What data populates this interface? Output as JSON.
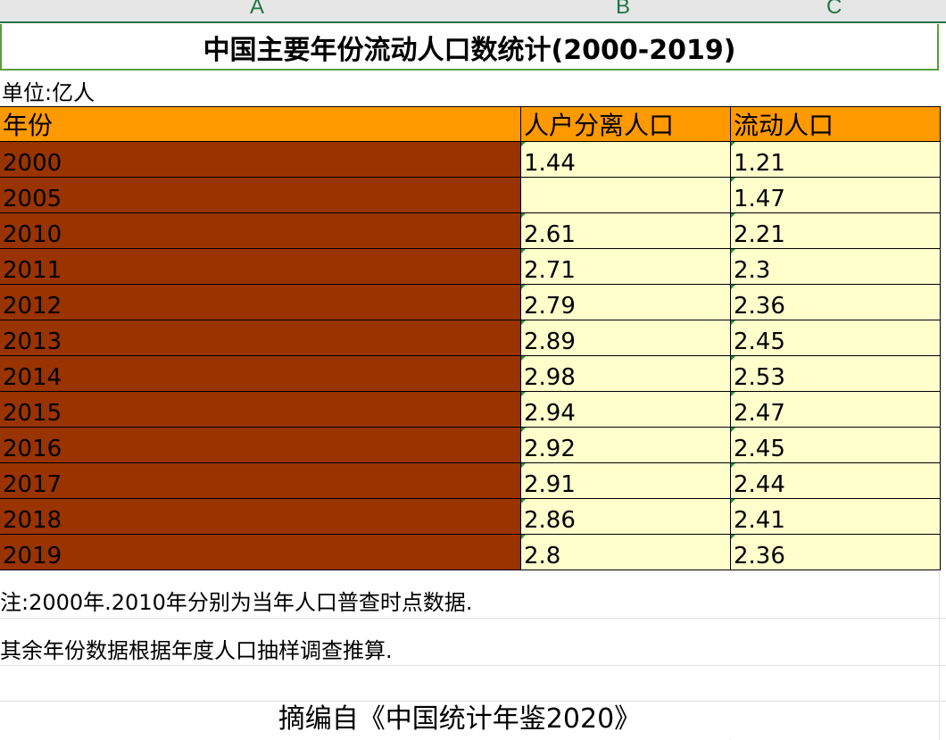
{
  "columns": [
    "A",
    "B",
    "C"
  ],
  "title": "中国主要年份流动人口数统计(2000-2019)",
  "unit": "单位:亿人",
  "headers": [
    "年份",
    "人户分离人口",
    "流动人口"
  ],
  "rows": [
    {
      "year": "2000",
      "separated": "1.44",
      "floating": "1.21"
    },
    {
      "year": "2005",
      "separated": "",
      "floating": "1.47"
    },
    {
      "year": "2010",
      "separated": "2.61",
      "floating": "2.21"
    },
    {
      "year": "2011",
      "separated": "2.71",
      "floating": "2.3"
    },
    {
      "year": "2012",
      "separated": "2.79",
      "floating": "2.36"
    },
    {
      "year": "2013",
      "separated": "2.89",
      "floating": "2.45"
    },
    {
      "year": "2014",
      "separated": "2.98",
      "floating": "2.53"
    },
    {
      "year": "2015",
      "separated": "2.94",
      "floating": "2.47"
    },
    {
      "year": "2016",
      "separated": "2.92",
      "floating": "2.45"
    },
    {
      "year": "2017",
      "separated": "2.91",
      "floating": "2.44"
    },
    {
      "year": "2018",
      "separated": "2.86",
      "floating": "2.41"
    },
    {
      "year": "2019",
      "separated": "2.8",
      "floating": "2.36"
    }
  ],
  "notes": [
    "注:2000年.2010年分别为当年人口普查时点数据.",
    "其余年份数据根据年度人口抽样调查推算."
  ],
  "source": "摘编自《中国统计年鉴2020》",
  "colors": {
    "header_fill": "#ff9900",
    "year_fill": "#993300",
    "value_fill": "#ffffcc",
    "selection_border": "#217346"
  }
}
